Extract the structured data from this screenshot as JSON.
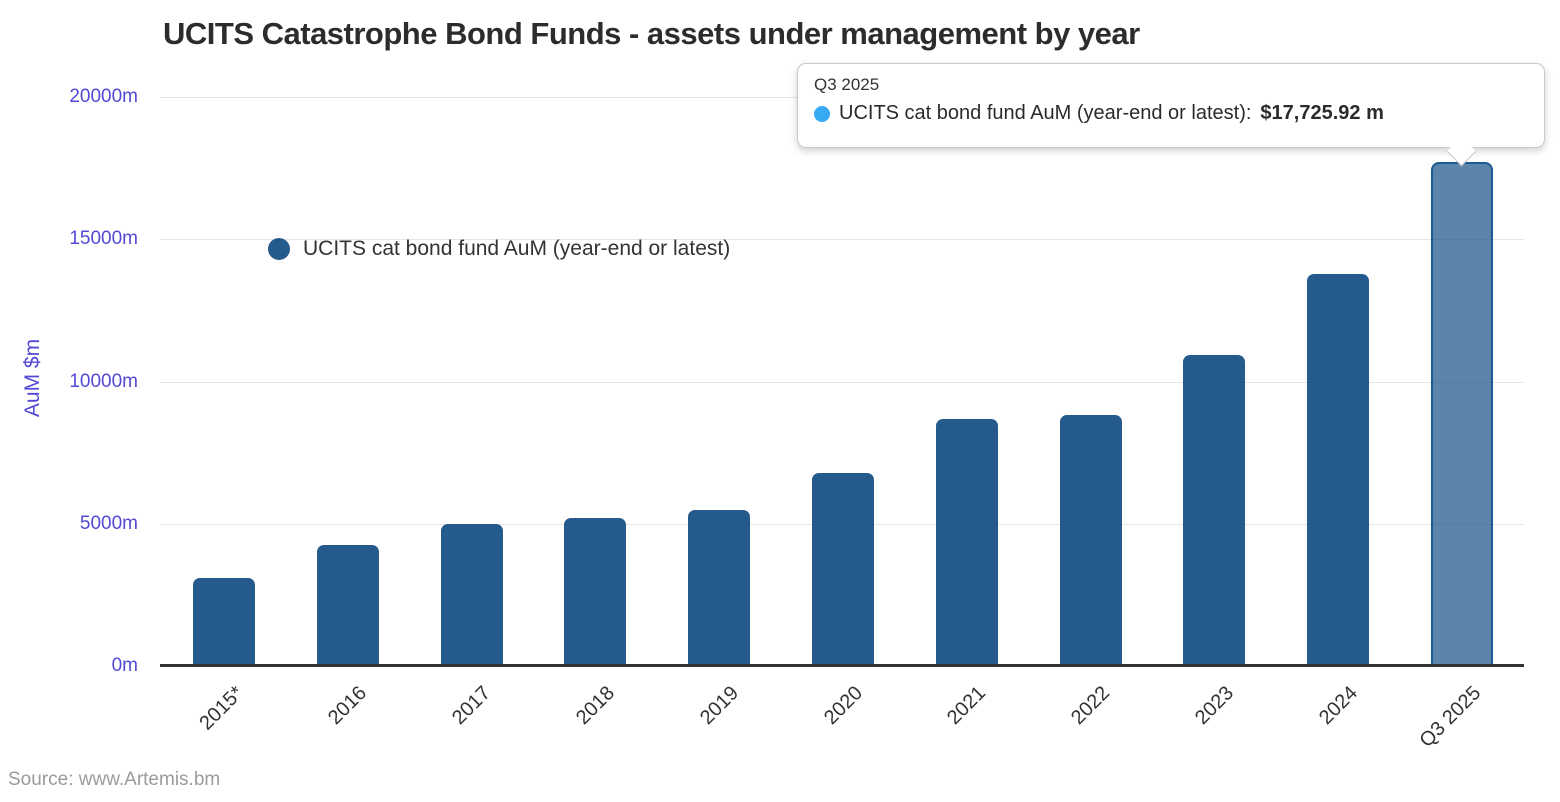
{
  "title": "UCITS Catastrophe Bond Funds - assets under management by year",
  "source": "Source: www.Artemis.bm",
  "legend": {
    "label": "UCITS cat bond fund AuM (year-end or latest)"
  },
  "tooltip": {
    "header": "Q3 2025",
    "series_label": "UCITS cat bond fund AuM (year-end or latest):",
    "value": "$17,725.92 m"
  },
  "colors": {
    "bar": "#255a8c",
    "bar_hover_fill": "rgba(37,90,140,0.74)",
    "bar_hover_stroke": "#1b5a94",
    "legend_marker": "#255a8c",
    "tooltip_marker": "#38a9f3",
    "y_axis_text": "#5349d4",
    "x_axis_text": "#333333",
    "grid": "#e5e5e5"
  },
  "chart_data": {
    "type": "bar",
    "title": "UCITS Catastrophe Bond Funds - assets under management by year",
    "xlabel": "",
    "ylabel": "AuM $m",
    "series_name": "UCITS cat bond fund AuM (year-end or latest)",
    "categories": [
      "2015*",
      "2016",
      "2017",
      "2018",
      "2019",
      "2020",
      "2021",
      "2022",
      "2023",
      "2024",
      "Q3 2025"
    ],
    "values": [
      3100,
      4250,
      5000,
      5200,
      5480,
      6780,
      8700,
      8830,
      10930,
      13780,
      17725.92
    ],
    "ylim": [
      0,
      20000
    ],
    "yticks": [
      0,
      5000,
      10000,
      15000,
      20000
    ],
    "ytick_labels": [
      "0m",
      "5000m",
      "10000m",
      "15000m",
      "20000m"
    ],
    "grid": "horizontal",
    "legend_position": "inside-left",
    "highlighted_index": 10,
    "highlighted_value_label": "$17,725.92 m"
  }
}
